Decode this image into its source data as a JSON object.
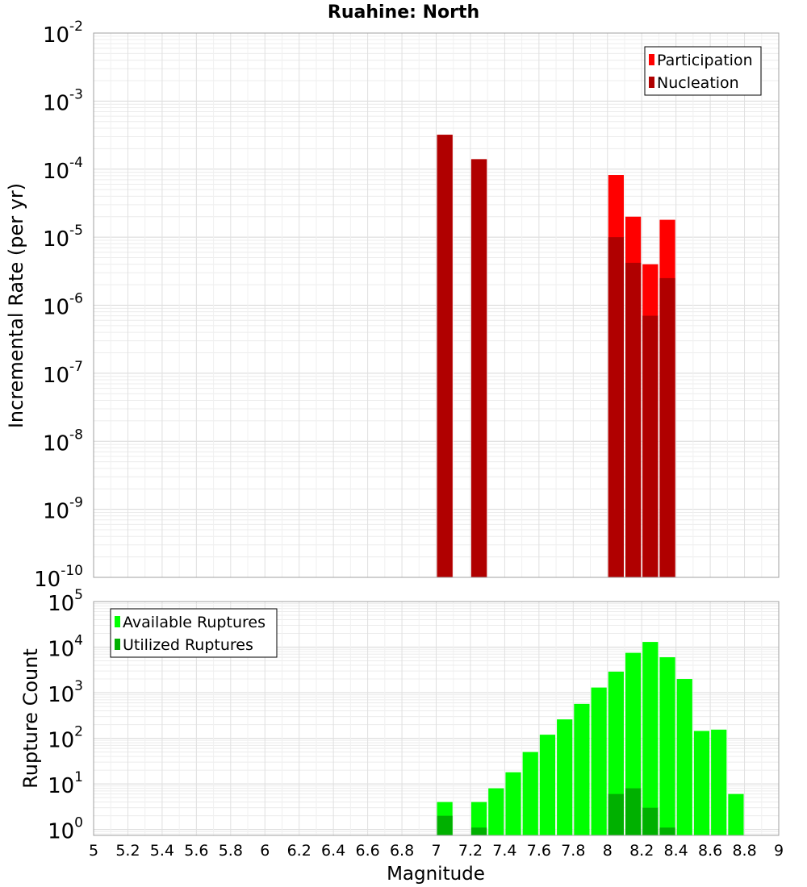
{
  "chart_data": [
    {
      "type": "bar",
      "title": "Ruahine: North",
      "ylabel": "Incremental Rate (per yr)",
      "yscale": "log",
      "ylim_exp": [
        -10,
        -2
      ],
      "ytick_base": "10",
      "ytick_exponents": [
        "-10",
        "-9",
        "-8",
        "-7",
        "-6",
        "-5",
        "-4",
        "-3",
        "-2"
      ],
      "bin_width": 0.1,
      "legend": {
        "placement": "top-right",
        "entries": [
          "Participation",
          "Nucleation"
        ]
      },
      "series": [
        {
          "name": "Participation",
          "color": "#ff0000",
          "x": [
            7.05,
            7.25,
            8.05,
            8.15,
            8.25,
            8.35
          ],
          "values": [
            0.00032,
            0.00014,
            8.2e-05,
            2e-05,
            4e-06,
            1.8e-05
          ]
        },
        {
          "name": "Nucleation",
          "color": "#b00000",
          "x": [
            7.05,
            7.25,
            8.05,
            8.15,
            8.25,
            8.35
          ],
          "values": [
            0.00032,
            0.00014,
            1e-05,
            4.2e-06,
            7e-07,
            2.5e-06
          ]
        }
      ]
    },
    {
      "type": "bar",
      "xlabel": "Magnitude",
      "ylabel": "Rupture Count",
      "yscale": "log",
      "ylim_exp": [
        -0.13,
        5
      ],
      "ytick_base": "10",
      "ytick_exponents": [
        "0",
        "1",
        "2",
        "3",
        "4",
        "5"
      ],
      "xlim": [
        5,
        9
      ],
      "xticks": [
        "5",
        "5.2",
        "5.4",
        "5.6",
        "5.8",
        "6",
        "6.2",
        "6.4",
        "6.6",
        "6.8",
        "7",
        "7.2",
        "7.4",
        "7.6",
        "7.8",
        "8",
        "8.2",
        "8.4",
        "8.6",
        "8.8",
        "9"
      ],
      "bin_width": 0.1,
      "legend": {
        "placement": "top-left",
        "entries": [
          "Available Ruptures",
          "Utilized Ruptures"
        ]
      },
      "series": [
        {
          "name": "Available Ruptures",
          "color": "#00ff00",
          "x": [
            7.05,
            7.25,
            7.35,
            7.45,
            7.55,
            7.65,
            7.75,
            7.85,
            7.95,
            8.05,
            8.15,
            8.25,
            8.35,
            8.45,
            8.55,
            8.65,
            8.75
          ],
          "values": [
            4,
            4,
            8,
            18,
            50,
            120,
            260,
            570,
            1300,
            2900,
            7500,
            13000,
            6000,
            2000,
            145,
            155,
            6
          ]
        },
        {
          "name": "Utilized Ruptures",
          "color": "#00b000",
          "x": [
            7.05,
            7.25,
            8.05,
            8.15,
            8.25,
            8.35
          ],
          "values": [
            2,
            1.1,
            6,
            8,
            3,
            1.1
          ]
        }
      ]
    }
  ]
}
